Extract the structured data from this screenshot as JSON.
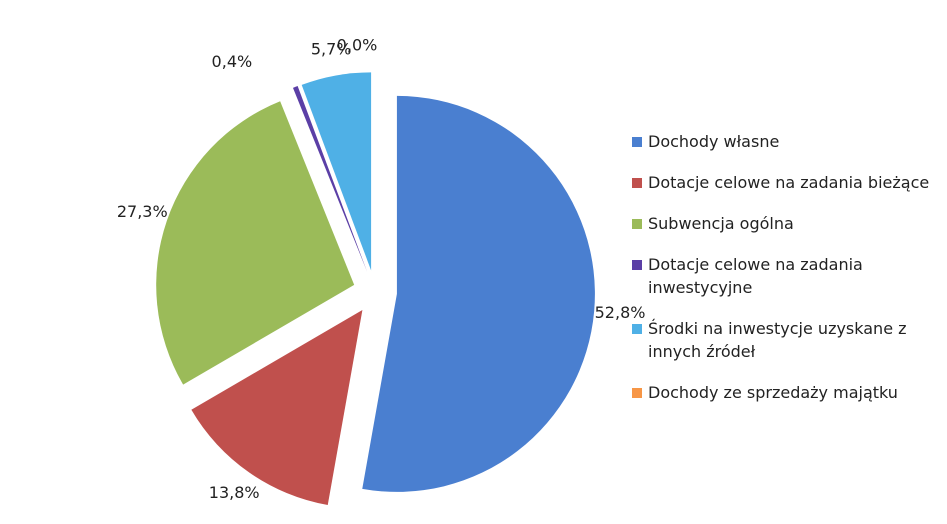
{
  "chart_data": {
    "type": "pie",
    "categories": [
      "Dochody własne",
      "Dotacje celowe na zadania bieżące",
      "Subwencja ogólna",
      "Dotacje celowe na zadania inwestycyjne",
      "Środki na inwestycje uzyskane z innych źródeł",
      "Dochody ze sprzedaży majątku"
    ],
    "values": [
      52.8,
      13.8,
      27.3,
      0.4,
      5.7,
      0.0
    ],
    "value_labels": [
      "52,8%",
      "13,8%",
      "27,3%",
      "0,4%",
      "5,7%",
      "0,0%"
    ],
    "colors": [
      "#4a7fd0",
      "#c0504d",
      "#9bbb59",
      "#5b3fa6",
      "#4fb0e6",
      "#f79646"
    ],
    "legend": "right"
  }
}
